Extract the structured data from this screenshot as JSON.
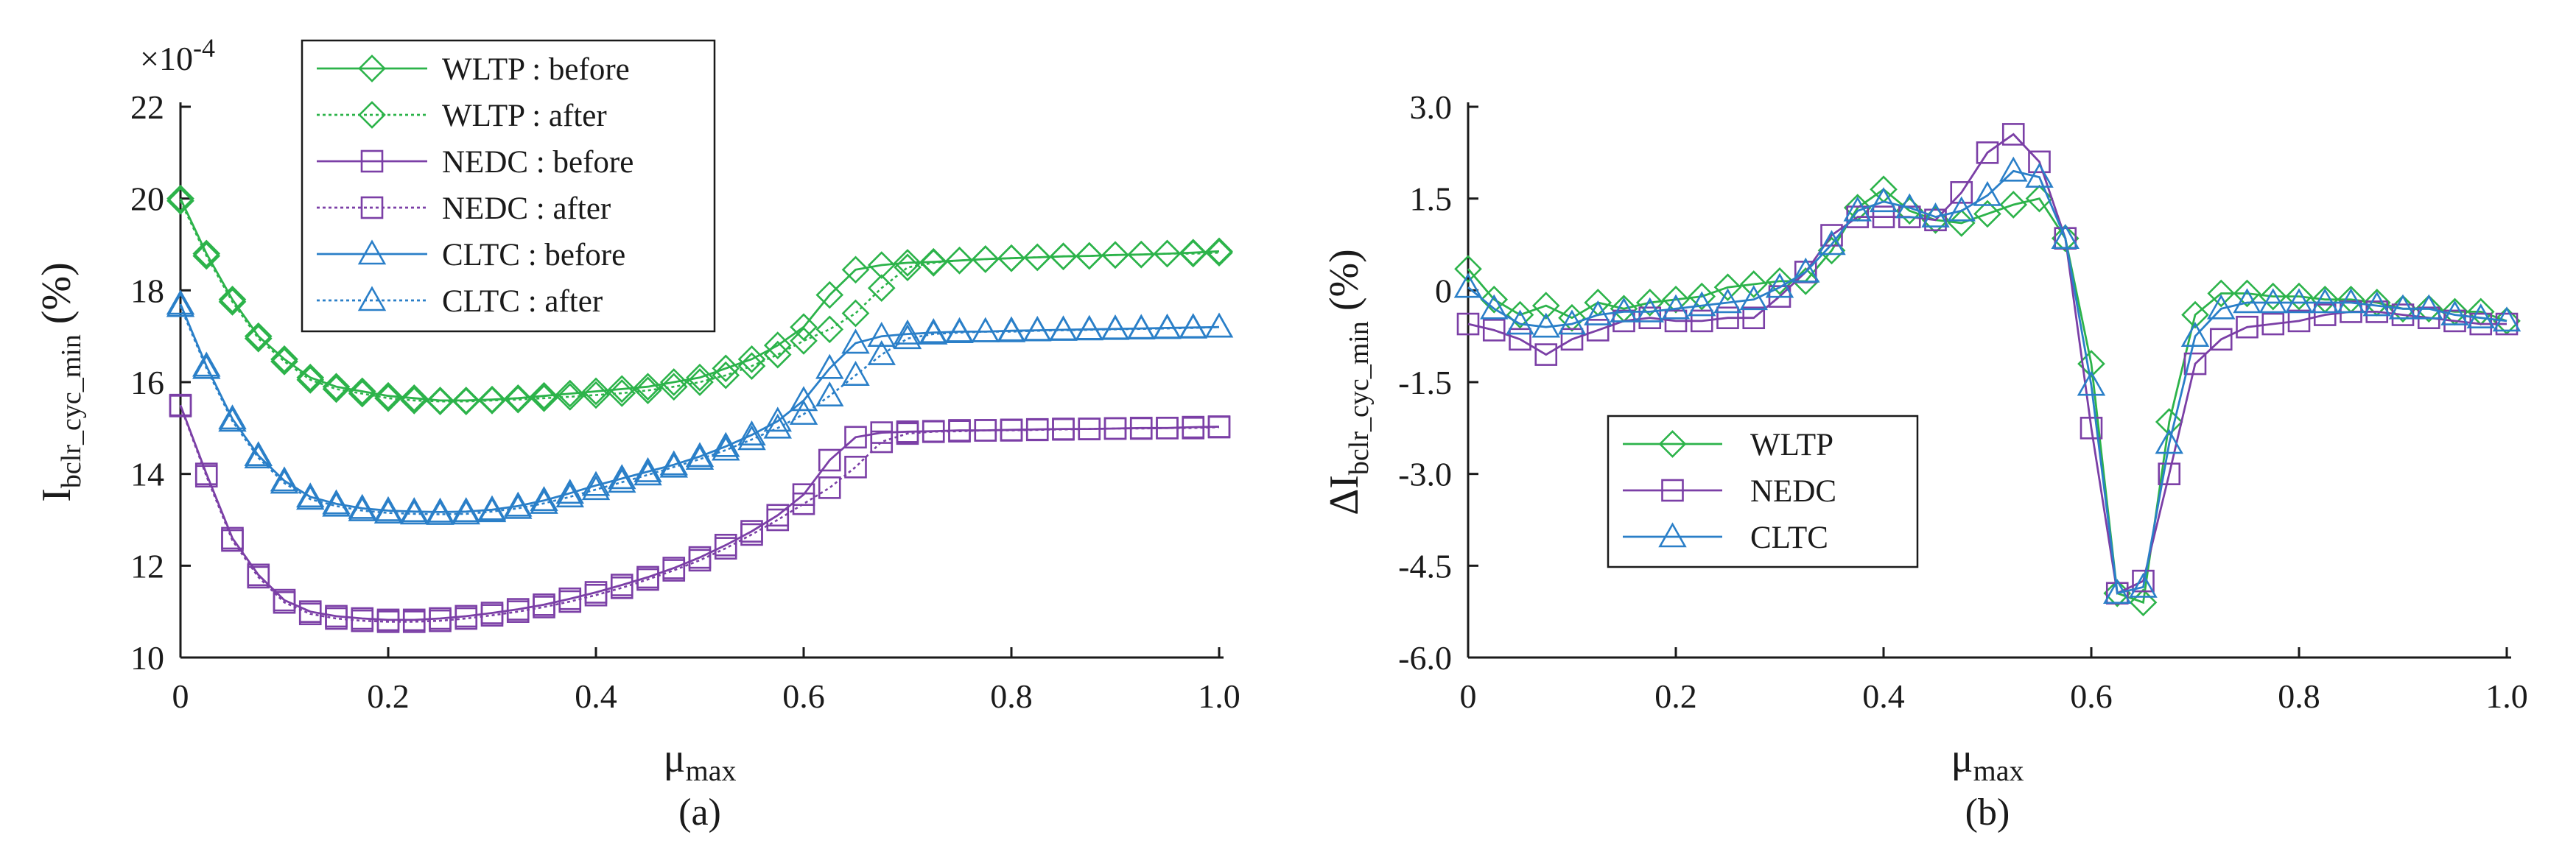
{
  "colors": {
    "wltp": "#2cb34a",
    "nedc": "#7b3fa6",
    "cltc": "#2a7fc8"
  },
  "chart_data": [
    {
      "type": "line",
      "panel_label": "(a)",
      "exponent_label": "×10",
      "exponent_power": "-4",
      "ylabel_main": "I",
      "ylabel_sub": "bclr_cyc_min",
      "ylabel_unit": " (%)",
      "xlabel_main": "μ",
      "xlabel_sub": "max",
      "xlim": [
        0,
        1.0
      ],
      "ylim": [
        10,
        22
      ],
      "xticks": [
        0,
        0.2,
        0.4,
        0.6,
        0.8,
        1.0
      ],
      "xtick_labels": [
        "0",
        "0.2",
        "0.4",
        "0.6",
        "0.8",
        "1.0"
      ],
      "yticks": [
        10,
        12,
        14,
        16,
        18,
        20,
        22
      ],
      "ytick_labels": [
        "10",
        "12",
        "14",
        "16",
        "18",
        "20",
        "22"
      ],
      "x": [
        0,
        0.025,
        0.05,
        0.075,
        0.1,
        0.125,
        0.15,
        0.175,
        0.2,
        0.225,
        0.25,
        0.275,
        0.3,
        0.325,
        0.35,
        0.375,
        0.4,
        0.425,
        0.45,
        0.475,
        0.5,
        0.525,
        0.55,
        0.575,
        0.6,
        0.625,
        0.65,
        0.675,
        0.7,
        0.725,
        0.75,
        0.775,
        0.8,
        0.825,
        0.85,
        0.875,
        0.9,
        0.925,
        0.95,
        0.975,
        1.0
      ],
      "series": [
        {
          "name": "WLTP : before",
          "color_key": "wltp",
          "marker": "diamond",
          "dash": "solid",
          "values": [
            20.0,
            18.8,
            17.8,
            17.0,
            16.5,
            16.1,
            15.9,
            15.8,
            15.7,
            15.65,
            15.6,
            15.6,
            15.62,
            15.65,
            15.7,
            15.75,
            15.8,
            15.85,
            15.9,
            16.0,
            16.1,
            16.3,
            16.5,
            16.8,
            17.2,
            17.9,
            18.45,
            18.55,
            18.6,
            18.62,
            18.65,
            18.68,
            18.7,
            18.72,
            18.74,
            18.75,
            18.77,
            18.78,
            18.8,
            18.82,
            18.85
          ]
        },
        {
          "name": "WLTP : after",
          "color_key": "wltp",
          "marker": "diamond",
          "dash": "dotted",
          "values": [
            19.95,
            18.75,
            17.75,
            16.95,
            16.45,
            16.05,
            15.85,
            15.75,
            15.65,
            15.6,
            15.58,
            15.58,
            15.6,
            15.62,
            15.65,
            15.68,
            15.72,
            15.76,
            15.82,
            15.9,
            16.0,
            16.15,
            16.35,
            16.6,
            16.9,
            17.15,
            17.5,
            18.05,
            18.5,
            18.6,
            18.65,
            18.68,
            18.7,
            18.72,
            18.74,
            18.75,
            18.77,
            18.78,
            18.8,
            18.8,
            18.82
          ]
        },
        {
          "name": "NEDC : before",
          "color_key": "nedc",
          "marker": "square",
          "dash": "solid",
          "values": [
            15.5,
            14.0,
            12.6,
            11.8,
            11.25,
            11.0,
            10.9,
            10.85,
            10.82,
            10.82,
            10.85,
            10.9,
            10.97,
            11.05,
            11.15,
            11.28,
            11.42,
            11.58,
            11.75,
            11.95,
            12.18,
            12.45,
            12.75,
            13.1,
            13.55,
            14.3,
            14.8,
            14.9,
            14.92,
            14.93,
            14.95,
            14.95,
            14.96,
            14.97,
            14.98,
            14.98,
            14.99,
            15.0,
            15.0,
            15.02,
            15.03
          ]
        },
        {
          "name": "NEDC : after",
          "color_key": "nedc",
          "marker": "square",
          "dash": "dotted",
          "values": [
            15.48,
            13.95,
            12.55,
            11.75,
            11.2,
            10.95,
            10.85,
            10.8,
            10.78,
            10.78,
            10.8,
            10.85,
            10.92,
            11.0,
            11.1,
            11.22,
            11.36,
            11.52,
            11.7,
            11.9,
            12.12,
            12.38,
            12.68,
            13.0,
            13.35,
            13.7,
            14.15,
            14.7,
            14.88,
            14.92,
            14.93,
            14.95,
            14.95,
            14.96,
            14.97,
            14.98,
            14.99,
            14.99,
            15.0,
            15.0,
            15.02
          ]
        },
        {
          "name": "CLTC : before",
          "color_key": "cltc",
          "marker": "triangle",
          "dash": "solid",
          "values": [
            17.7,
            16.35,
            15.2,
            14.4,
            13.85,
            13.5,
            13.35,
            13.25,
            13.2,
            13.18,
            13.17,
            13.18,
            13.22,
            13.3,
            13.42,
            13.58,
            13.75,
            13.9,
            14.05,
            14.2,
            14.38,
            14.6,
            14.85,
            15.15,
            15.6,
            16.3,
            16.85,
            17.0,
            17.05,
            17.08,
            17.1,
            17.1,
            17.12,
            17.13,
            17.14,
            17.15,
            17.16,
            17.17,
            17.18,
            17.19,
            17.2
          ]
        },
        {
          "name": "CLTC : after",
          "color_key": "cltc",
          "marker": "triangle",
          "dash": "dotted",
          "values": [
            17.65,
            16.3,
            15.15,
            14.35,
            13.8,
            13.45,
            13.3,
            13.2,
            13.15,
            13.13,
            13.12,
            13.13,
            13.18,
            13.25,
            13.36,
            13.5,
            13.66,
            13.82,
            13.98,
            14.15,
            14.32,
            14.52,
            14.75,
            15.0,
            15.3,
            15.7,
            16.15,
            16.6,
            16.95,
            17.05,
            17.08,
            17.1,
            17.1,
            17.12,
            17.13,
            17.14,
            17.15,
            17.16,
            17.17,
            17.18,
            17.2
          ]
        }
      ]
    },
    {
      "type": "line",
      "panel_label": "(b)",
      "ylabel_main": "ΔI",
      "ylabel_sub": "bclr_cyc_min",
      "ylabel_unit": " (%)",
      "xlabel_main": "μ",
      "xlabel_sub": "max",
      "xlim": [
        0,
        1.0
      ],
      "ylim": [
        -6.0,
        3.0
      ],
      "xticks": [
        0,
        0.2,
        0.4,
        0.6,
        0.8,
        1.0
      ],
      "xtick_labels": [
        "0",
        "0.2",
        "0.4",
        "0.6",
        "0.8",
        "1.0"
      ],
      "yticks": [
        3.0,
        1.5,
        0,
        -1.5,
        -3.0,
        -4.5,
        -6.0
      ],
      "ytick_labels": [
        "3.0",
        "1.5",
        "0",
        "-1.5",
        "-3.0",
        "-4.5",
        "-6.0"
      ],
      "x": [
        0,
        0.025,
        0.05,
        0.075,
        0.1,
        0.125,
        0.15,
        0.175,
        0.2,
        0.225,
        0.25,
        0.275,
        0.3,
        0.325,
        0.35,
        0.375,
        0.4,
        0.425,
        0.45,
        0.475,
        0.5,
        0.525,
        0.55,
        0.575,
        0.6,
        0.625,
        0.65,
        0.675,
        0.7,
        0.725,
        0.75,
        0.775,
        0.8,
        0.825,
        0.85,
        0.875,
        0.9,
        0.925,
        0.95,
        0.975,
        1.0
      ],
      "series": [
        {
          "name": "WLTP",
          "color_key": "wltp",
          "marker": "diamond",
          "dash": "solid",
          "values": [
            0.35,
            -0.15,
            -0.4,
            -0.25,
            -0.45,
            -0.2,
            -0.3,
            -0.2,
            -0.15,
            -0.1,
            0.05,
            0.1,
            0.15,
            0.15,
            0.65,
            1.35,
            1.65,
            1.3,
            1.15,
            1.1,
            1.25,
            1.4,
            1.5,
            0.85,
            -1.2,
            -4.95,
            -5.1,
            -2.15,
            -0.4,
            -0.05,
            -0.05,
            -0.1,
            -0.1,
            -0.15,
            -0.15,
            -0.2,
            -0.3,
            -0.3,
            -0.35,
            -0.35,
            -0.5
          ]
        },
        {
          "name": "NEDC",
          "color_key": "nedc",
          "marker": "square",
          "dash": "solid",
          "values": [
            -0.55,
            -0.65,
            -0.8,
            -1.05,
            -0.8,
            -0.65,
            -0.5,
            -0.45,
            -0.5,
            -0.5,
            -0.45,
            -0.45,
            -0.1,
            0.3,
            0.9,
            1.2,
            1.2,
            1.2,
            1.15,
            1.6,
            2.25,
            2.55,
            2.1,
            0.85,
            -2.25,
            -4.95,
            -4.75,
            -3.0,
            -1.2,
            -0.8,
            -0.6,
            -0.55,
            -0.5,
            -0.4,
            -0.35,
            -0.35,
            -0.4,
            -0.45,
            -0.5,
            -0.55,
            -0.55
          ]
        },
        {
          "name": "CLTC",
          "color_key": "cltc",
          "marker": "triangle",
          "dash": "solid",
          "values": [
            0.05,
            -0.3,
            -0.55,
            -0.6,
            -0.55,
            -0.4,
            -0.35,
            -0.35,
            -0.3,
            -0.25,
            -0.2,
            -0.15,
            0.05,
            0.3,
            0.75,
            1.3,
            1.45,
            1.35,
            1.2,
            1.3,
            1.55,
            1.95,
            1.85,
            0.85,
            -1.55,
            -4.95,
            -4.85,
            -2.5,
            -0.75,
            -0.3,
            -0.2,
            -0.2,
            -0.2,
            -0.2,
            -0.2,
            -0.25,
            -0.3,
            -0.3,
            -0.4,
            -0.45,
            -0.5
          ]
        }
      ]
    }
  ]
}
